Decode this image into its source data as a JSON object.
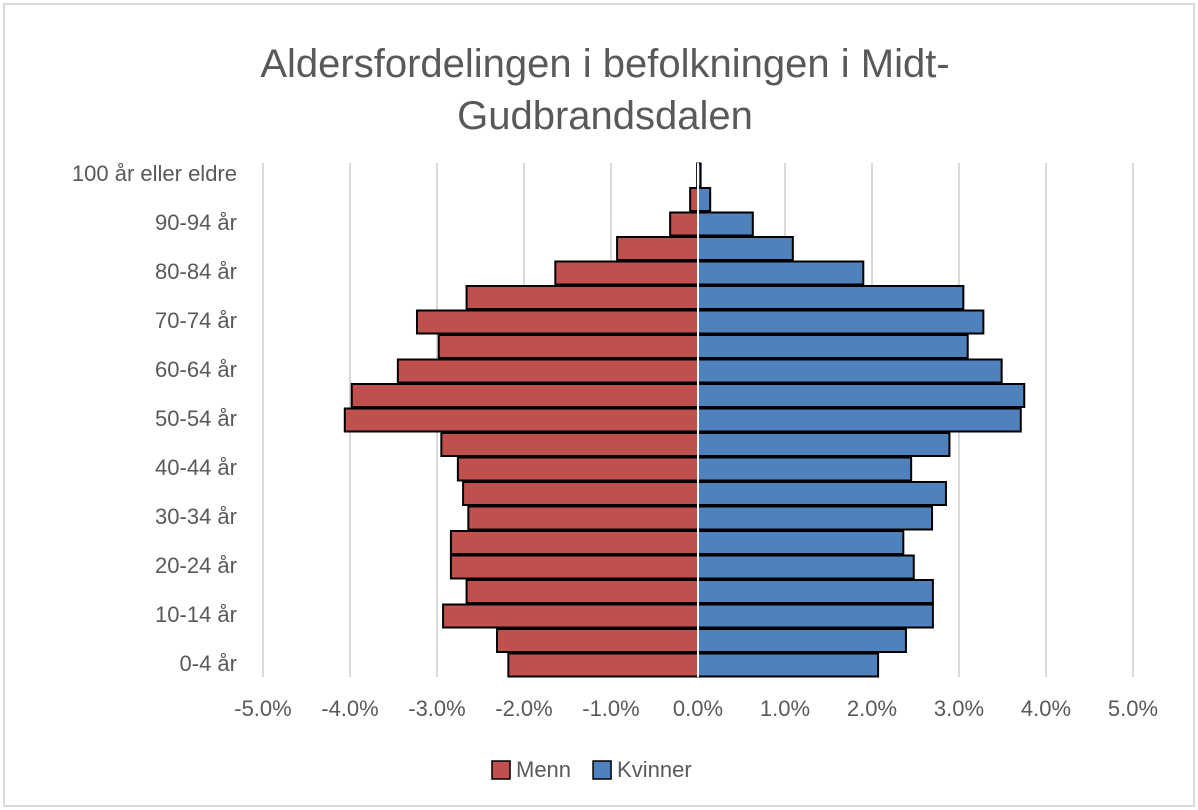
{
  "chart_data": {
    "type": "bar",
    "orientation": "horizontal",
    "stacked": false,
    "title": "Aldersfordelingen i befolkningen i Midt-Gudbrandsdalen",
    "categories": [
      "0-4 år",
      null,
      "10-14 år",
      null,
      "20-24 år",
      null,
      "30-34 år",
      null,
      "40-44 år",
      null,
      "50-54 år",
      null,
      "60-64 år",
      null,
      "70-74 år",
      null,
      "80-84 år",
      null,
      "90-94 år",
      null,
      "100 år eller eldre"
    ],
    "series": [
      {
        "name": "Menn",
        "color": "#c0504d",
        "values": [
          -2.18,
          -2.31,
          -2.93,
          -2.66,
          -2.84,
          -2.84,
          -2.64,
          -2.7,
          -2.76,
          -2.95,
          -4.06,
          -3.98,
          -3.45,
          -2.98,
          -3.23,
          -2.66,
          -1.64,
          -0.93,
          -0.32,
          -0.09,
          -0.01
        ]
      },
      {
        "name": "Kvinner",
        "color": "#4f81bd",
        "values": [
          2.07,
          2.39,
          2.7,
          2.7,
          2.48,
          2.36,
          2.69,
          2.85,
          2.45,
          2.89,
          3.71,
          3.75,
          3.49,
          3.1,
          3.28,
          3.05,
          1.9,
          1.09,
          0.63,
          0.14,
          0.03
        ]
      }
    ],
    "xlim": [
      -5,
      5
    ],
    "xticks": [
      {
        "value": -5,
        "label": "-5.0%"
      },
      {
        "value": -4,
        "label": "-4.0%"
      },
      {
        "value": -3,
        "label": "-3.0%"
      },
      {
        "value": -2,
        "label": "-2.0%"
      },
      {
        "value": -1,
        "label": "-1.0%"
      },
      {
        "value": 0,
        "label": "0.0%"
      },
      {
        "value": 1,
        "label": "1.0%"
      },
      {
        "value": 2,
        "label": "2.0%"
      },
      {
        "value": 3,
        "label": "3.0%"
      },
      {
        "value": 4,
        "label": "4.0%"
      },
      {
        "value": 5,
        "label": "5.0%"
      }
    ],
    "grid": true,
    "legend": "bottom"
  }
}
